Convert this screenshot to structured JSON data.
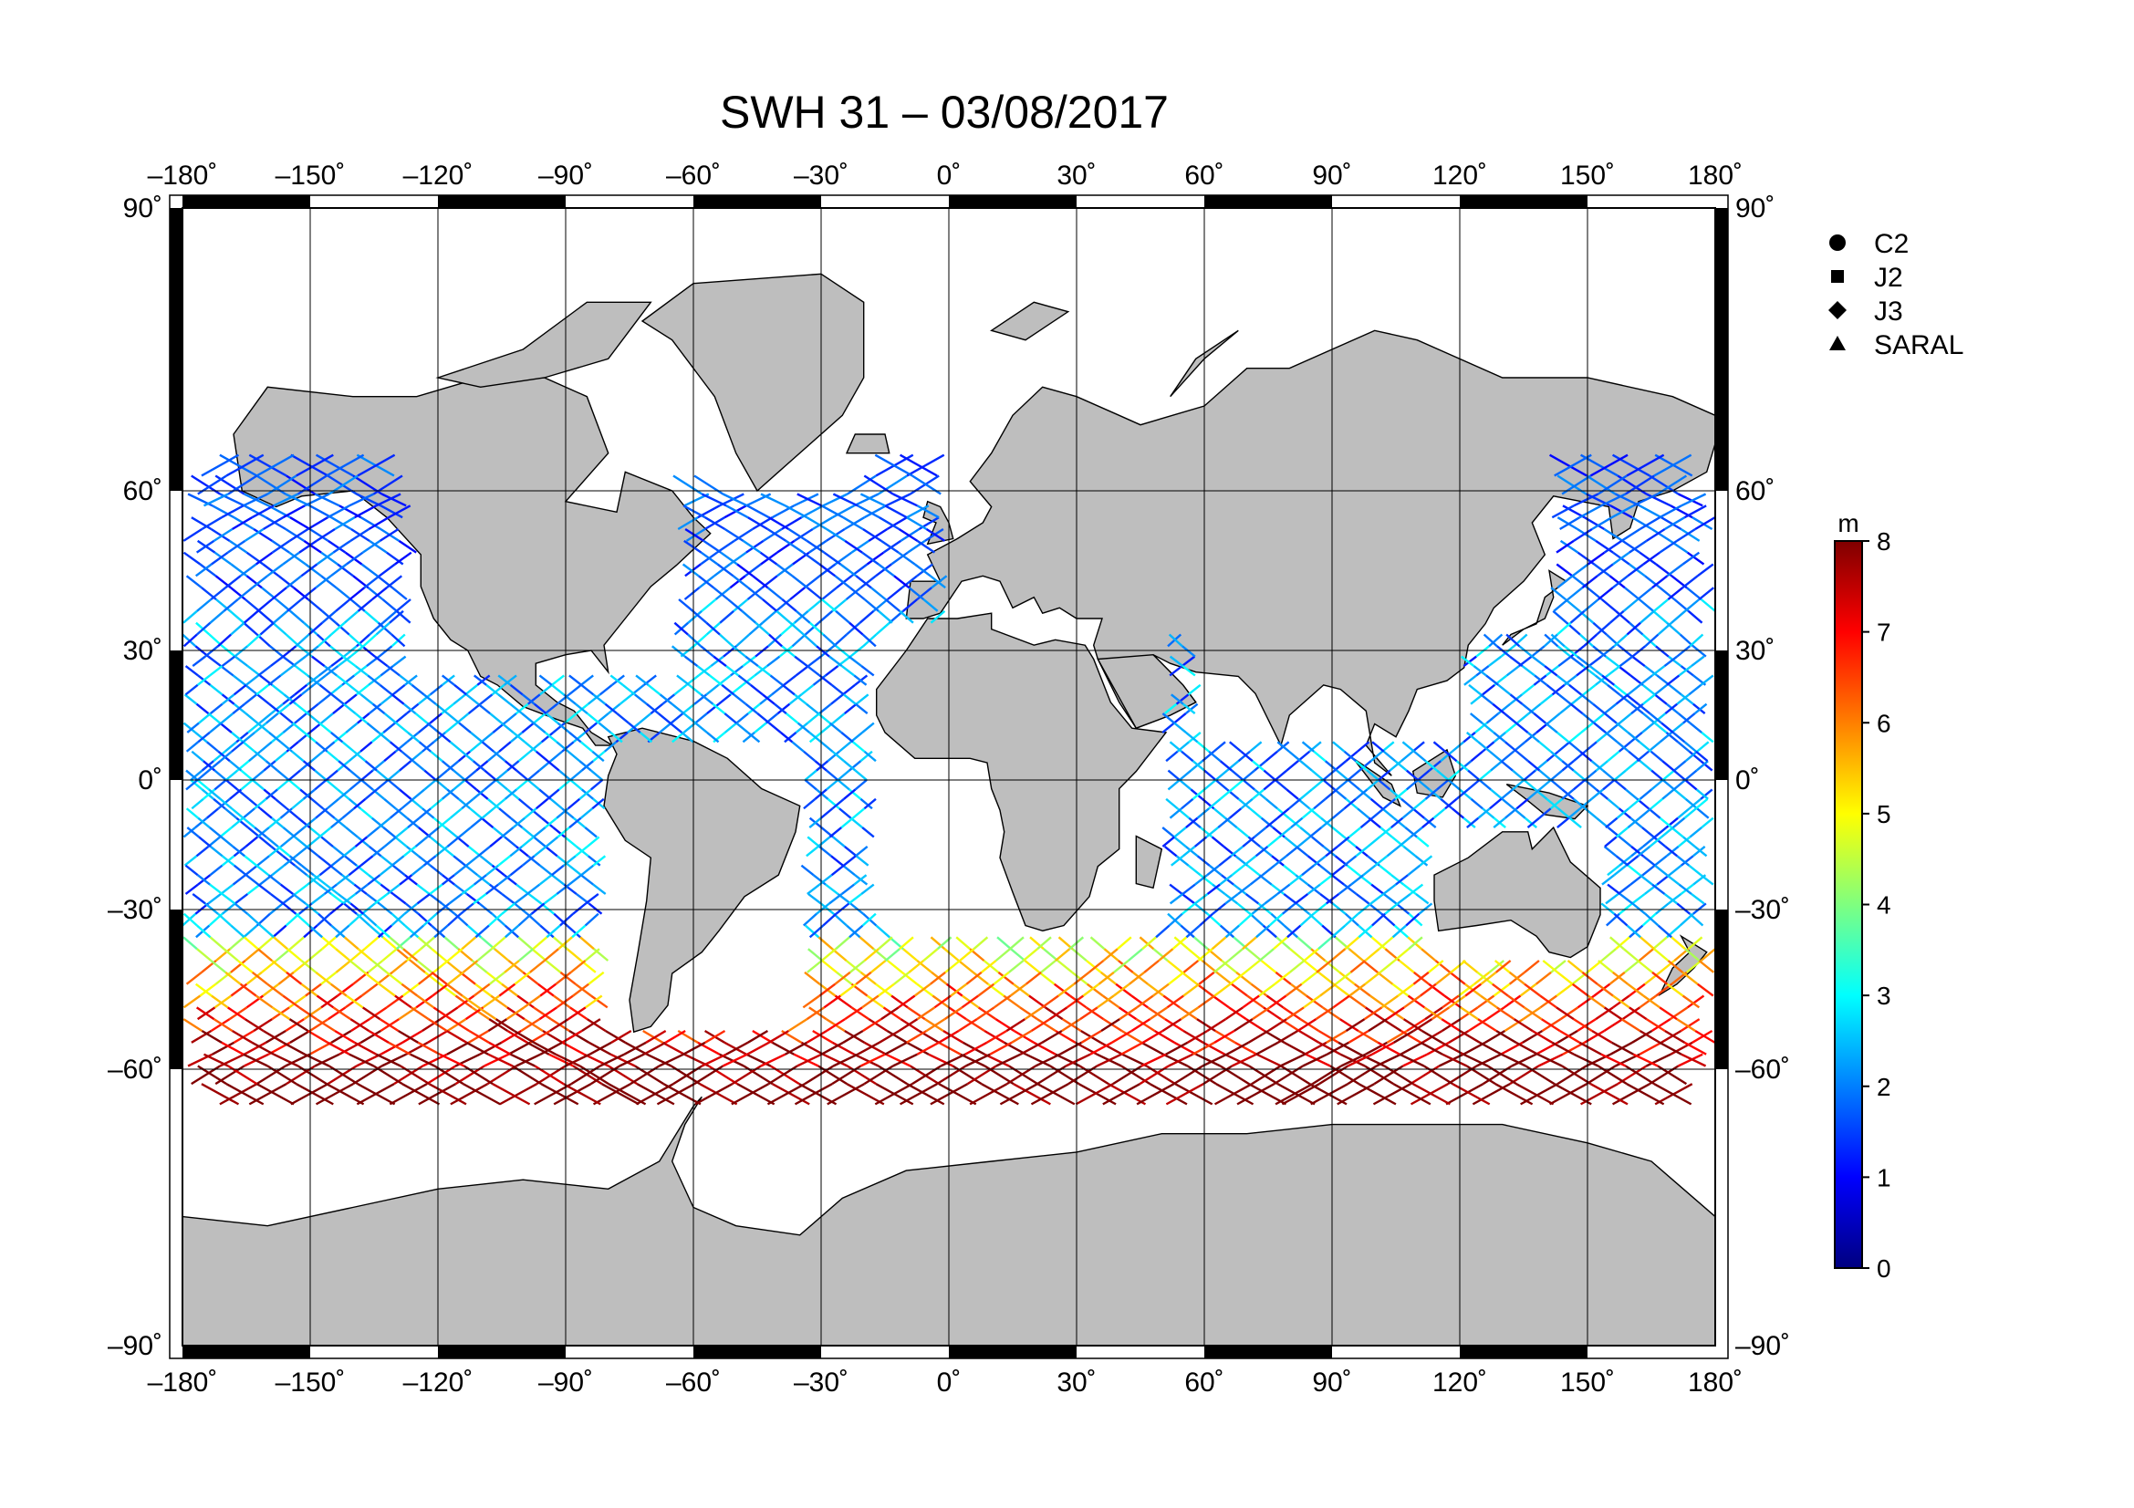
{
  "title": "SWH 31 – 03/08/2017",
  "axes": {
    "lon_ticks": [
      {
        "value": -180,
        "label": "–180˚"
      },
      {
        "value": -150,
        "label": "–150˚"
      },
      {
        "value": -120,
        "label": "–120˚"
      },
      {
        "value": -90,
        "label": "–90˚"
      },
      {
        "value": -60,
        "label": "–60˚"
      },
      {
        "value": -30,
        "label": "–30˚"
      },
      {
        "value": 0,
        "label": "0˚"
      },
      {
        "value": 30,
        "label": "30˚"
      },
      {
        "value": 60,
        "label": "60˚"
      },
      {
        "value": 90,
        "label": "90˚"
      },
      {
        "value": 120,
        "label": "120˚"
      },
      {
        "value": 150,
        "label": "150˚"
      },
      {
        "value": 180,
        "label": "180˚"
      }
    ],
    "lat_ticks": [
      {
        "value": 90,
        "label": "90˚"
      },
      {
        "value": 60,
        "label": "60˚"
      },
      {
        "value": 30,
        "label": "30˚"
      },
      {
        "value": 0,
        "label": "0˚"
      },
      {
        "value": -30,
        "label": "–30˚"
      },
      {
        "value": -60,
        "label": "–60˚"
      },
      {
        "value": -90,
        "label": "–90˚"
      }
    ],
    "lon_range": [
      -180,
      180
    ],
    "lat_range": [
      -90,
      90
    ],
    "grid": true,
    "projection": "mercator"
  },
  "legend": {
    "items": [
      {
        "symbol": "circle",
        "label": "C2"
      },
      {
        "symbol": "square",
        "label": "J2"
      },
      {
        "symbol": "diamond",
        "label": "J3"
      },
      {
        "symbol": "triangle",
        "label": "SARAL"
      }
    ],
    "placement": "right"
  },
  "colorbar": {
    "unit": "m",
    "min": 0,
    "max": 8,
    "ticks": [
      "0",
      "1",
      "2",
      "3",
      "4",
      "5",
      "6",
      "7",
      "8"
    ],
    "colormap": "jet",
    "colors": [
      "#00007f",
      "#0000ff",
      "#007fff",
      "#00ffff",
      "#7fff7f",
      "#ffff00",
      "#ff7f00",
      "#ff0000",
      "#7f0000"
    ]
  },
  "colors": {
    "land": "#bebebe",
    "ocean": "#ffffff",
    "coastline": "#000000"
  }
}
